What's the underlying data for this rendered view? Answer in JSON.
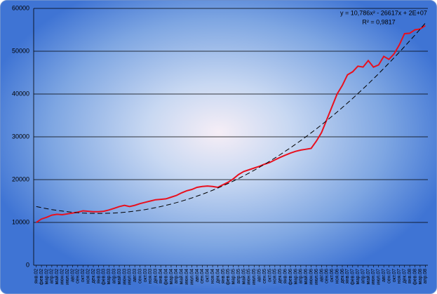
{
  "chart_data": {
    "type": "line",
    "annotations": [
      "y = 10,786x² - 26617x + 2E+07",
      "R² = 0,9817"
    ],
    "categories": [
      "янв.02",
      "фев.02",
      "мар.02",
      "апр.02",
      "май.02",
      "июн.02",
      "июл.02",
      "авг.02",
      "сен.02",
      "окт.02",
      "ноя.02",
      "дек.02",
      "янв.03",
      "фев.03",
      "мар.03",
      "апр.03",
      "май.03",
      "июн.03",
      "июл.03",
      "авг.03",
      "сен.03",
      "окт.03",
      "ноя.03",
      "дек.03",
      "янв.04",
      "фев.04",
      "мар.04",
      "апр.04",
      "май.04",
      "июн.04",
      "июл.04",
      "авг.04",
      "сен.04",
      "окт.04",
      "ноя.04",
      "дек.04",
      "янв.05",
      "фев.05",
      "мар.05",
      "апр.05",
      "май.05",
      "июн.05",
      "июл.05",
      "авг.05",
      "сен.05",
      "окт.05",
      "ноя.05",
      "дек.05",
      "янв.06",
      "фев.06",
      "мар.06",
      "апр.06",
      "май.06",
      "июн.06",
      "июл.06",
      "авг.06",
      "сен.06",
      "окт.06",
      "ноя.06",
      "дек.06",
      "янв.07",
      "фев.07",
      "мар.07",
      "апр.07",
      "май.07",
      "июн.07",
      "июл.07",
      "авг.07",
      "сен.07",
      "окт.07",
      "ноя.07",
      "дек.07",
      "янв.08",
      "фев.08",
      "мар.08",
      "апр.08"
    ],
    "series": [
      {
        "color": "#e8101e",
        "values": [
          10000,
          10800,
          11200,
          11700,
          11900,
          11800,
          12000,
          12200,
          12400,
          12700,
          12600,
          12500,
          12500,
          12600,
          12900,
          13300,
          13700,
          14000,
          13700,
          14000,
          14400,
          14700,
          15000,
          15300,
          15400,
          15500,
          15900,
          16300,
          16900,
          17400,
          17700,
          18200,
          18400,
          18500,
          18400,
          18200,
          18800,
          19400,
          20200,
          21200,
          21900,
          22300,
          22700,
          23100,
          23600,
          24000,
          24600,
          25200,
          25700,
          26200,
          26600,
          26900,
          27100,
          27300,
          29000,
          31000,
          34000,
          37000,
          40000,
          42000,
          44500,
          45200,
          46500,
          46300,
          47800,
          46300,
          46800,
          48800,
          48100,
          49400,
          51500,
          54100,
          54200,
          55000,
          55200,
          56000
        ]
      },
      {
        "color": "#000000",
        "dashed": true,
        "values": [
          13713,
          13455,
          13220,
          13007,
          12817,
          12649,
          12503,
          12380,
          12279,
          12201,
          12145,
          12111,
          12100,
          12111,
          12145,
          12201,
          12279,
          12380,
          12503,
          12649,
          12817,
          13007,
          13220,
          13455,
          13713,
          13993,
          14295,
          14620,
          14967,
          15337,
          15729,
          16143,
          16580,
          17039,
          17521,
          18025,
          18551,
          19100,
          19671,
          20265,
          20881,
          21519,
          22180,
          22863,
          23569,
          24297,
          25047,
          25820,
          26615,
          27433,
          28273,
          29135,
          30020,
          30927,
          31857,
          32809,
          33783,
          34780,
          35799,
          36841,
          37905,
          38991,
          40100,
          41231,
          42385,
          43561,
          44759,
          45980,
          47223,
          48489,
          49777,
          51087,
          52420,
          53775,
          55153,
          56553
        ]
      }
    ],
    "ylim": [
      0,
      60000
    ],
    "yticks": [
      0,
      10000,
      20000,
      30000,
      40000,
      50000,
      60000
    ],
    "grid": true
  }
}
